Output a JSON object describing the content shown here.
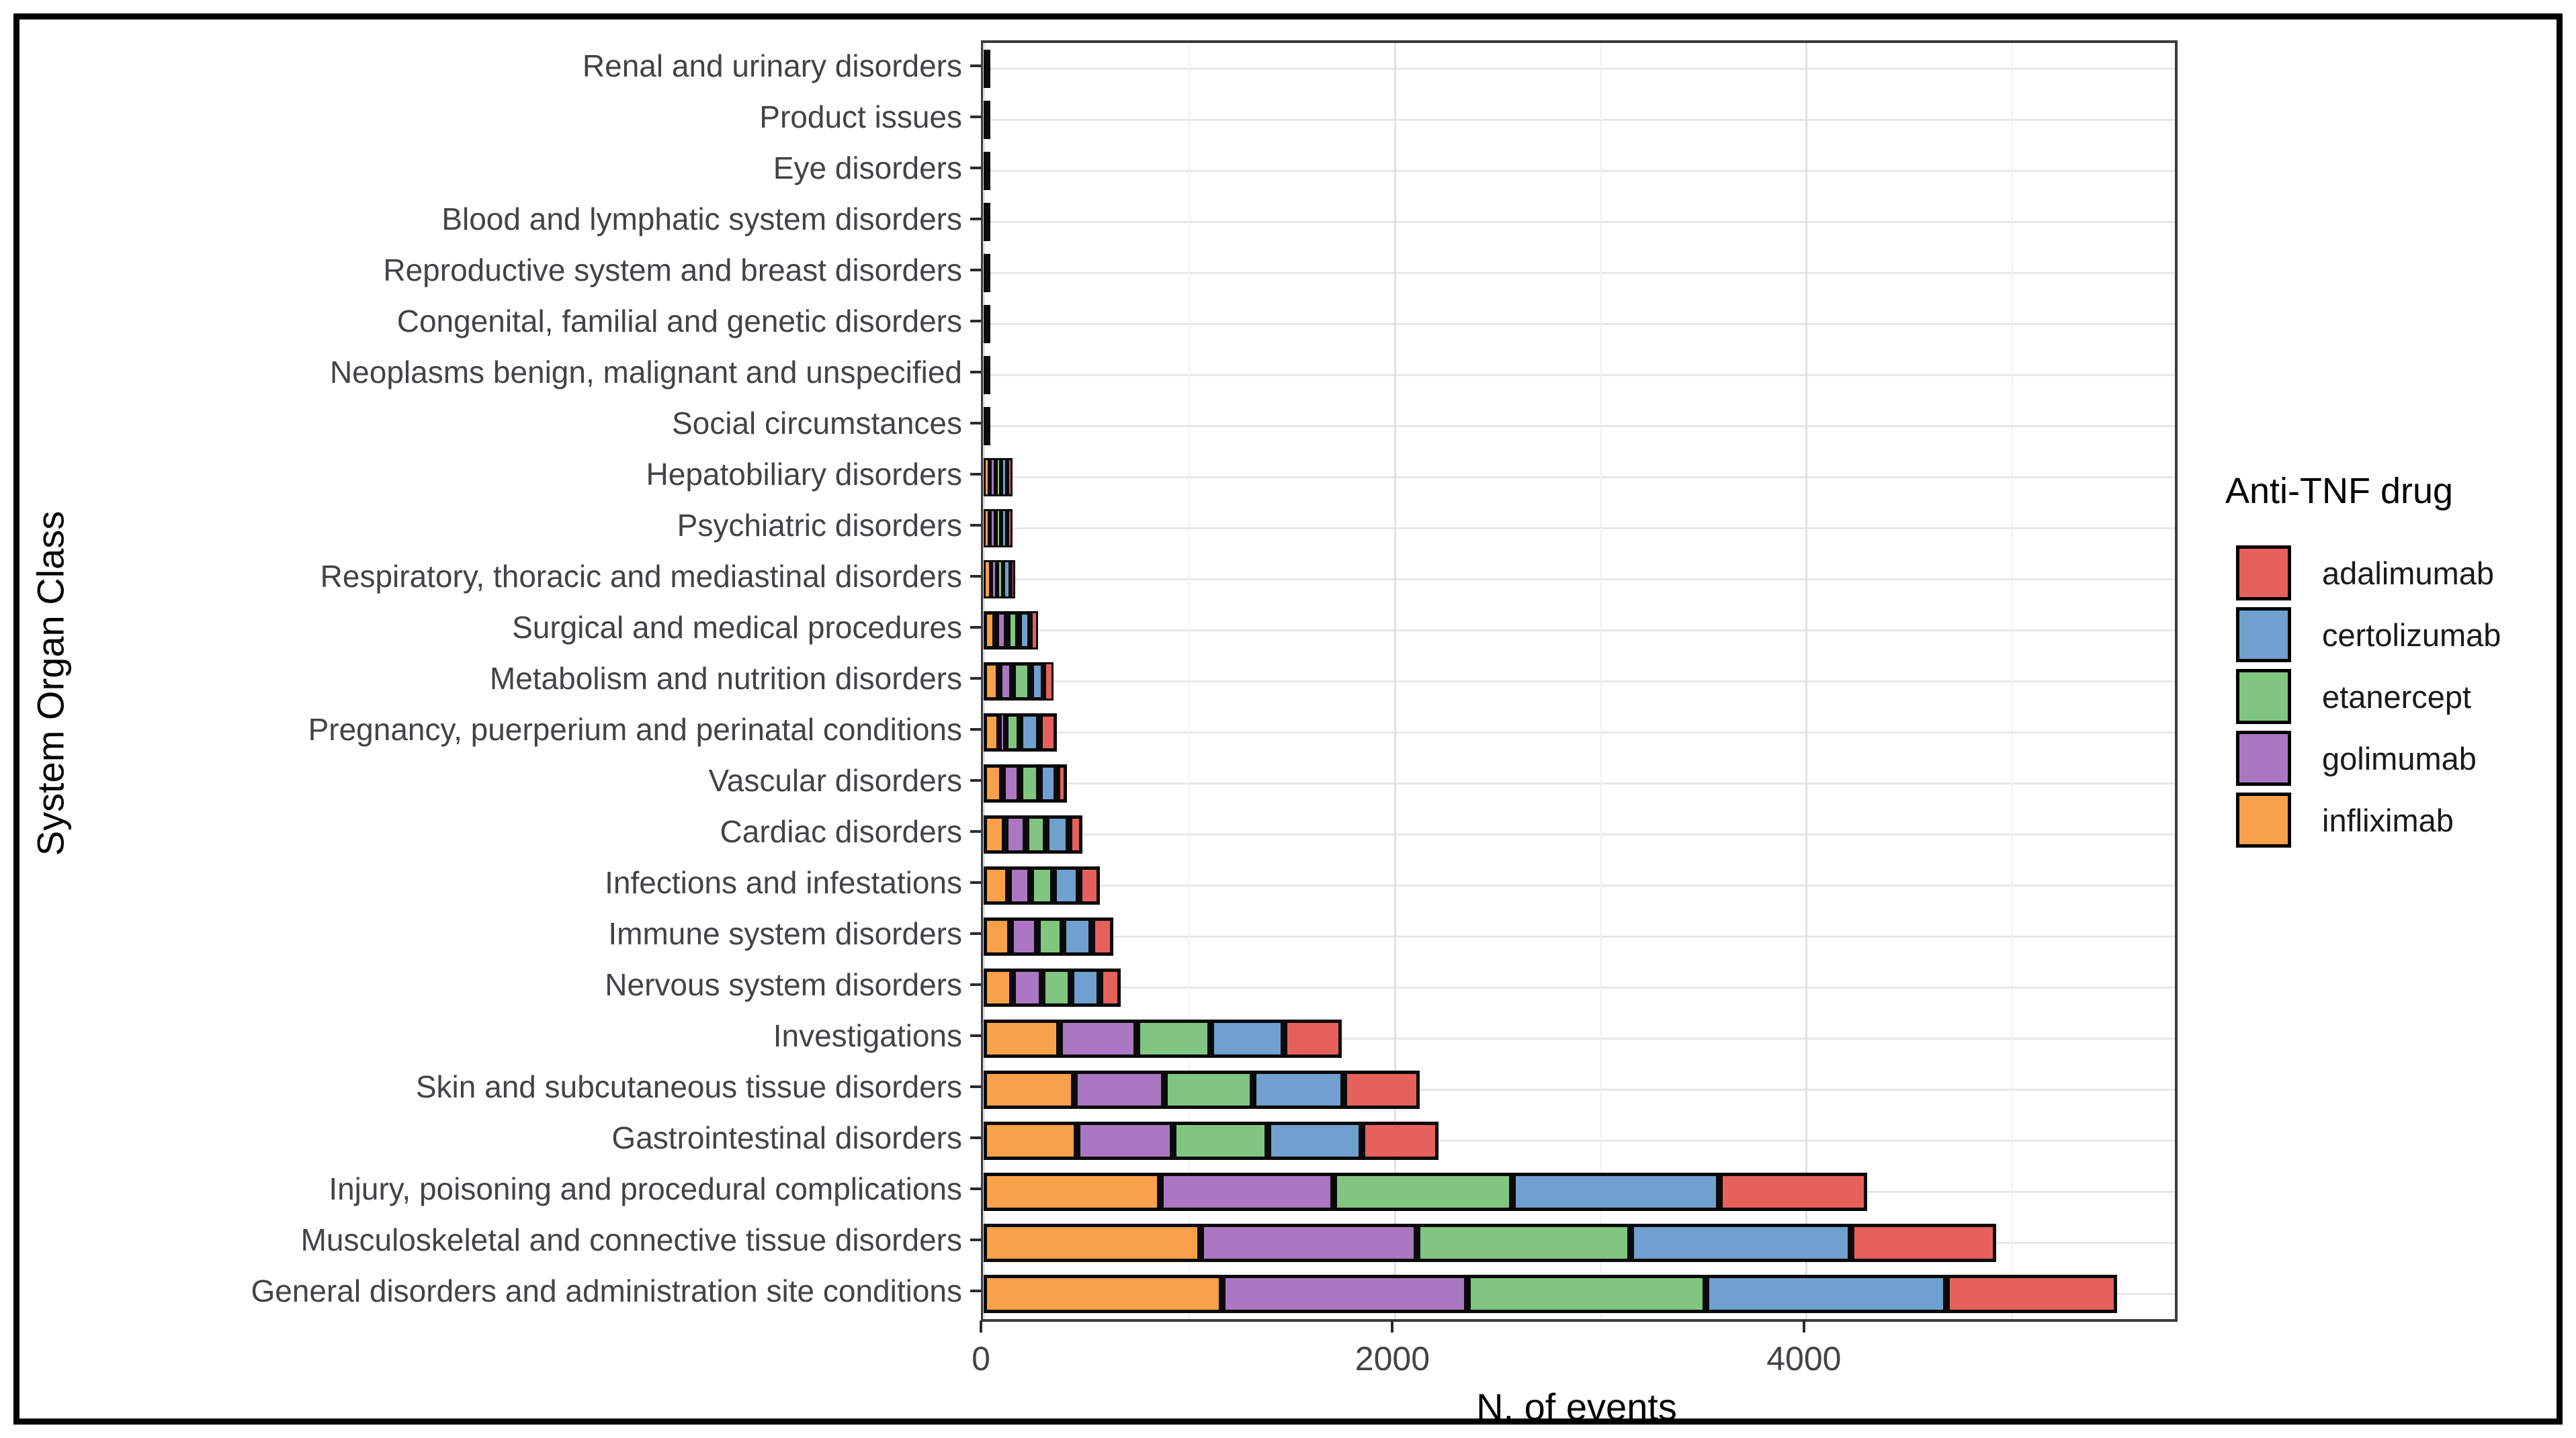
{
  "figure": {
    "background": "#ffffff",
    "frame_color": "#000000",
    "panel_border_color": "#3a3a3a",
    "bar_outline_color": "#0a0a0a",
    "gridline_major_color": "#e2e2e2",
    "gridline_minor_color": "#f1f1f1",
    "axis_text_color": "#434347"
  },
  "chart_data": {
    "type": "bar",
    "orientation": "horizontal",
    "stacked": true,
    "title": "",
    "xlabel": "N. of events",
    "ylabel": "System Organ Class",
    "legend_title": "Anti-TNF drug",
    "legend_position": "right",
    "grid": "major+minor",
    "xlim": [
      0,
      5790
    ],
    "x_ticks": [
      {
        "value": 0,
        "label": "0"
      },
      {
        "value": 2000,
        "label": "2000"
      },
      {
        "value": 4000,
        "label": "4000"
      }
    ],
    "x_minor_gridlines": [
      1000,
      3000,
      5000
    ],
    "categories": [
      "Renal and urinary disorders",
      "Product issues",
      "Eye disorders",
      "Blood and lymphatic system disorders",
      "Reproductive system and breast disorders",
      "Congenital, familial and genetic disorders",
      "Neoplasms benign, malignant and unspecified",
      "Social circumstances",
      "Hepatobiliary disorders",
      "Psychiatric disorders",
      "Respiratory, thoracic and mediastinal disorders",
      "Surgical and medical procedures",
      "Metabolism and nutrition disorders",
      "Pregnancy, puerperium and perinatal conditions",
      "Vascular disorders",
      "Cardiac disorders",
      "Infections and infestations",
      "Immune system disorders",
      "Nervous system disorders",
      "Investigations",
      "Skin and subcutaneous tissue disorders",
      "Gastrointestinal disorders",
      "Injury, poisoning and procedural complications",
      "Musculoskeletal and connective tissue disorders",
      "General disorders and administration site conditions"
    ],
    "stack_order": [
      "infliximab",
      "golimumab",
      "etanercept",
      "certolizumab",
      "adalimumab"
    ],
    "series": [
      {
        "name": "infliximab",
        "color": "#F9A04B",
        "values": [
          2,
          2,
          2,
          3,
          3,
          5,
          5,
          6,
          30,
          30,
          35,
          60,
          75,
          80,
          90,
          105,
          120,
          130,
          140,
          370,
          440,
          455,
          860,
          1055,
          1160
        ]
      },
      {
        "name": "golimumab",
        "color": "#AC77C2",
        "values": [
          2,
          2,
          2,
          3,
          3,
          5,
          5,
          6,
          30,
          30,
          30,
          55,
          65,
          25,
          85,
          100,
          110,
          130,
          145,
          375,
          440,
          465,
          840,
          1050,
          1190
        ]
      },
      {
        "name": "etanercept",
        "color": "#80C680",
        "values": [
          1,
          1,
          2,
          3,
          3,
          5,
          5,
          5,
          25,
          25,
          30,
          55,
          90,
          70,
          95,
          100,
          110,
          125,
          140,
          360,
          430,
          460,
          870,
          1040,
          1160
        ]
      },
      {
        "name": "certolizumab",
        "color": "#6FA0CF",
        "values": [
          2,
          2,
          2,
          3,
          3,
          5,
          5,
          6,
          30,
          30,
          35,
          60,
          65,
          95,
          85,
          110,
          125,
          140,
          140,
          355,
          440,
          460,
          1005,
          1070,
          1170
        ]
      },
      {
        "name": "adalimumab",
        "color": "#E6605C",
        "values": [
          1,
          1,
          2,
          3,
          3,
          5,
          5,
          5,
          25,
          25,
          25,
          35,
          45,
          85,
          50,
          65,
          100,
          105,
          100,
          280,
          370,
          370,
          720,
          705,
          830
        ]
      }
    ],
    "legend_entries": [
      {
        "name": "adalimumab",
        "color": "#E6605C"
      },
      {
        "name": "certolizumab",
        "color": "#6FA0CF"
      },
      {
        "name": "etanercept",
        "color": "#80C680"
      },
      {
        "name": "golimumab",
        "color": "#AC77C2"
      },
      {
        "name": "infliximab",
        "color": "#F9A04B"
      }
    ]
  }
}
